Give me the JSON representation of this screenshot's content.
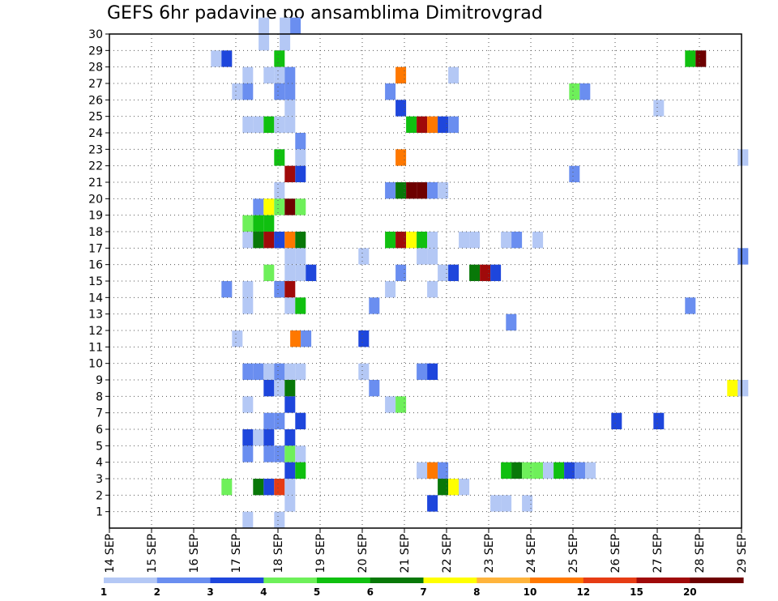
{
  "title": "GEFS 6hr padavine po ansamblima Dimitrovgrad",
  "chart_data": {
    "type": "heatmap",
    "title": "GEFS 6hr padavine po ansamblima Dimitrovgrad",
    "x_tick_labels": [
      "14 SEP",
      "15 SEP",
      "16 SEP",
      "17 SEP",
      "18 SEP",
      "19 SEP",
      "20 SEP",
      "21 SEP",
      "22 SEP",
      "23 SEP",
      "24 SEP",
      "25 SEP",
      "26 SEP",
      "27 SEP",
      "28 SEP",
      "29 SEP"
    ],
    "y_tick_labels": [
      "1",
      "2",
      "3",
      "4",
      "5",
      "6",
      "7",
      "8",
      "9",
      "10",
      "11",
      "12",
      "13",
      "14",
      "15",
      "16",
      "17",
      "18",
      "19",
      "20",
      "21",
      "22",
      "23",
      "24",
      "25",
      "26",
      "27",
      "28",
      "29",
      "30"
    ],
    "x_range_days": [
      0,
      15
    ],
    "y_range": [
      0,
      30
    ],
    "grid": true,
    "colorbar": {
      "labels": [
        "1",
        "2",
        "3",
        "4",
        "5",
        "6",
        "7",
        "8",
        "10",
        "12",
        "15",
        "20"
      ],
      "colors": [
        "#b4c8f5",
        "#6a8ef0",
        "#1e46dc",
        "#6ef05a",
        "#10c010",
        "#087808",
        "#ffff00",
        "#ffb43c",
        "#ff7800",
        "#e63c14",
        "#a00a0a",
        "#6e0000"
      ]
    },
    "cells": [
      [
        3.54,
        30,
        1
      ],
      [
        4.04,
        30,
        1
      ],
      [
        4.29,
        30,
        2
      ],
      [
        3.54,
        29,
        1
      ],
      [
        4.04,
        29,
        1
      ],
      [
        2.41,
        28,
        1
      ],
      [
        2.66,
        28,
        3
      ],
      [
        3.91,
        28,
        5
      ],
      [
        13.66,
        28,
        5
      ],
      [
        13.91,
        28,
        12
      ],
      [
        3.16,
        27,
        1
      ],
      [
        3.66,
        27,
        1
      ],
      [
        3.91,
        27,
        1
      ],
      [
        4.16,
        27,
        2
      ],
      [
        6.79,
        27,
        9
      ],
      [
        8.04,
        27,
        1
      ],
      [
        2.91,
        26,
        1
      ],
      [
        3.16,
        26,
        2
      ],
      [
        3.91,
        26,
        2
      ],
      [
        4.16,
        26,
        2
      ],
      [
        6.54,
        26,
        2
      ],
      [
        10.91,
        26,
        4
      ],
      [
        11.16,
        26,
        2
      ],
      [
        4.16,
        25,
        1
      ],
      [
        6.79,
        25,
        3
      ],
      [
        12.91,
        25,
        1
      ],
      [
        3.16,
        24,
        1
      ],
      [
        3.41,
        24,
        1
      ],
      [
        3.66,
        24,
        5
      ],
      [
        3.91,
        24,
        1
      ],
      [
        4.16,
        24,
        1
      ],
      [
        7.04,
        24,
        5
      ],
      [
        7.29,
        24,
        11
      ],
      [
        7.54,
        24,
        9
      ],
      [
        7.79,
        24,
        3
      ],
      [
        8.04,
        24,
        2
      ],
      [
        4.41,
        23,
        2
      ],
      [
        3.91,
        22,
        5
      ],
      [
        4.41,
        22,
        1
      ],
      [
        6.79,
        22,
        9
      ],
      [
        14.91,
        22,
        1
      ],
      [
        4.16,
        21,
        11
      ],
      [
        4.41,
        21,
        3
      ],
      [
        10.91,
        21,
        2
      ],
      [
        3.91,
        20,
        1
      ],
      [
        6.54,
        20,
        2
      ],
      [
        6.79,
        20,
        6
      ],
      [
        7.04,
        20,
        12
      ],
      [
        7.29,
        20,
        12
      ],
      [
        7.54,
        20,
        2
      ],
      [
        7.79,
        20,
        1
      ],
      [
        3.41,
        19,
        2
      ],
      [
        3.66,
        19,
        7
      ],
      [
        3.91,
        19,
        4
      ],
      [
        4.16,
        19,
        12
      ],
      [
        4.41,
        19,
        4
      ],
      [
        3.16,
        18,
        4
      ],
      [
        3.41,
        18,
        5
      ],
      [
        3.66,
        18,
        5
      ],
      [
        3.16,
        17,
        1
      ],
      [
        3.41,
        17,
        6
      ],
      [
        3.66,
        17,
        11
      ],
      [
        3.91,
        17,
        3
      ],
      [
        4.16,
        17,
        9
      ],
      [
        4.41,
        17,
        6
      ],
      [
        6.54,
        17,
        5
      ],
      [
        6.79,
        17,
        11
      ],
      [
        7.04,
        17,
        7
      ],
      [
        7.29,
        17,
        5
      ],
      [
        7.54,
        17,
        1
      ],
      [
        8.29,
        17,
        1
      ],
      [
        8.54,
        17,
        1
      ],
      [
        9.29,
        17,
        1
      ],
      [
        9.54,
        17,
        2
      ],
      [
        10.04,
        17,
        1
      ],
      [
        4.16,
        16,
        1
      ],
      [
        4.41,
        16,
        1
      ],
      [
        5.91,
        16,
        1
      ],
      [
        7.29,
        16,
        1
      ],
      [
        7.54,
        16,
        1
      ],
      [
        14.91,
        16,
        2
      ],
      [
        3.66,
        15,
        4
      ],
      [
        4.16,
        15,
        1
      ],
      [
        4.41,
        15,
        1
      ],
      [
        4.66,
        15,
        3
      ],
      [
        6.79,
        15,
        2
      ],
      [
        7.79,
        15,
        1
      ],
      [
        8.04,
        15,
        3
      ],
      [
        8.54,
        15,
        6
      ],
      [
        8.79,
        15,
        11
      ],
      [
        9.04,
        15,
        3
      ],
      [
        2.66,
        14,
        2
      ],
      [
        3.16,
        14,
        1
      ],
      [
        3.91,
        14,
        2
      ],
      [
        4.16,
        14,
        11
      ],
      [
        6.54,
        14,
        1
      ],
      [
        7.54,
        14,
        1
      ],
      [
        3.16,
        13,
        1
      ],
      [
        4.16,
        13,
        1
      ],
      [
        4.41,
        13,
        5
      ],
      [
        6.16,
        13,
        2
      ],
      [
        13.66,
        13,
        2
      ],
      [
        9.41,
        12,
        2
      ],
      [
        2.91,
        11,
        1
      ],
      [
        4.29,
        11,
        9
      ],
      [
        4.54,
        11,
        2
      ],
      [
        5.91,
        11,
        3
      ],
      [
        3.16,
        9,
        2
      ],
      [
        3.41,
        9,
        2
      ],
      [
        3.66,
        9,
        1
      ],
      [
        3.91,
        9,
        2
      ],
      [
        4.16,
        9,
        1
      ],
      [
        4.41,
        9,
        1
      ],
      [
        5.91,
        9,
        1
      ],
      [
        7.29,
        9,
        2
      ],
      [
        7.54,
        9,
        3
      ],
      [
        3.66,
        8,
        3
      ],
      [
        3.91,
        8,
        1
      ],
      [
        4.16,
        8,
        6
      ],
      [
        6.16,
        8,
        2
      ],
      [
        14.66,
        8,
        7
      ],
      [
        14.91,
        8,
        1
      ],
      [
        3.16,
        7,
        1
      ],
      [
        4.16,
        7,
        3
      ],
      [
        6.54,
        7,
        1
      ],
      [
        6.79,
        7,
        4
      ],
      [
        3.66,
        6,
        2
      ],
      [
        3.91,
        6,
        2
      ],
      [
        4.41,
        6,
        3
      ],
      [
        11.91,
        6,
        3
      ],
      [
        12.91,
        6,
        3
      ],
      [
        3.16,
        5,
        3
      ],
      [
        3.41,
        5,
        1
      ],
      [
        3.66,
        5,
        3
      ],
      [
        4.16,
        5,
        3
      ],
      [
        3.16,
        4,
        2
      ],
      [
        3.66,
        4,
        2
      ],
      [
        3.91,
        4,
        2
      ],
      [
        4.16,
        4,
        4
      ],
      [
        4.41,
        4,
        1
      ],
      [
        4.16,
        3,
        3
      ],
      [
        4.41,
        3,
        5
      ],
      [
        7.29,
        3,
        1
      ],
      [
        7.54,
        3,
        9
      ],
      [
        7.79,
        3,
        2
      ],
      [
        9.29,
        3,
        5
      ],
      [
        9.54,
        3,
        6
      ],
      [
        9.79,
        3,
        4
      ],
      [
        10.04,
        3,
        4
      ],
      [
        10.29,
        3,
        1
      ],
      [
        10.54,
        3,
        5
      ],
      [
        10.79,
        3,
        3
      ],
      [
        11.04,
        3,
        2
      ],
      [
        11.29,
        3,
        1
      ],
      [
        2.66,
        2,
        4
      ],
      [
        3.41,
        2,
        6
      ],
      [
        3.66,
        2,
        3
      ],
      [
        3.91,
        2,
        10
      ],
      [
        4.16,
        2,
        1
      ],
      [
        7.79,
        2,
        6
      ],
      [
        8.04,
        2,
        7
      ],
      [
        8.29,
        2,
        1
      ],
      [
        4.16,
        1,
        1
      ],
      [
        7.54,
        1,
        3
      ],
      [
        9.04,
        1,
        1
      ],
      [
        9.29,
        1,
        1
      ],
      [
        9.79,
        1,
        1
      ],
      [
        3.16,
        0,
        1
      ],
      [
        3.91,
        0,
        1
      ]
    ]
  }
}
